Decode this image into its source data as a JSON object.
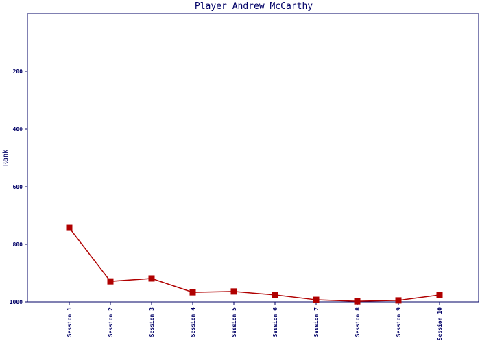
{
  "chart_data": {
    "type": "line",
    "title": "Player Andrew McCarthy",
    "y_label": "Rank",
    "categories": [
      "Session 1",
      "Session 2",
      "Session 3",
      "Session 4",
      "Session 5",
      "Session 6",
      "Session 7",
      "Session 8",
      "Session 9",
      "Session 10"
    ],
    "series": [
      {
        "name": "Rank",
        "color": "#b00000",
        "values": [
          743,
          929,
          919,
          967,
          964,
          976,
          993,
          998,
          995,
          976
        ]
      }
    ],
    "ylim": [
      0,
      1000
    ],
    "y_reversed": true,
    "yticks": [
      200,
      400,
      600,
      800,
      1000
    ]
  }
}
